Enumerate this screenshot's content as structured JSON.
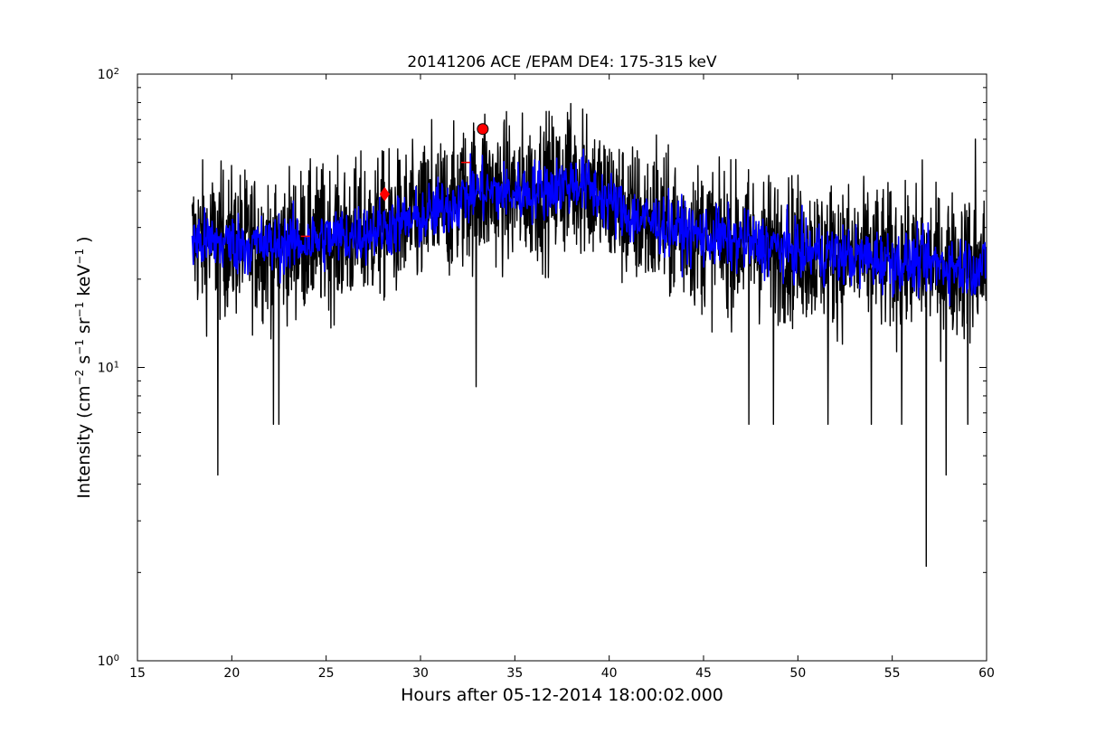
{
  "chart_data": {
    "type": "line",
    "title": "20141206 ACE /EPAM DE4: 175-315 keV",
    "xlabel": "Hours after 05-12-2014 18:00:02.000",
    "ylabel_parts": [
      "Intensity (cm",
      "−2",
      " s",
      "−1",
      " sr",
      "−1",
      " keV",
      "−1",
      " )"
    ],
    "xlim": [
      15,
      60
    ],
    "ylim": [
      1,
      100
    ],
    "yscale": "log",
    "x_ticks": [
      15,
      20,
      25,
      30,
      35,
      40,
      45,
      50,
      55,
      60
    ],
    "x_tick_labels": [
      "15",
      "20",
      "25",
      "30",
      "35",
      "40",
      "45",
      "50",
      "55",
      "60"
    ],
    "y_ticks": [
      1,
      10,
      100
    ],
    "y_tick_bases": [
      "10",
      "10",
      "10"
    ],
    "y_tick_exps": [
      "0",
      "1",
      "2"
    ],
    "grid": false,
    "series": [
      {
        "color": "#000000",
        "style": "raw",
        "x_start": 17.9,
        "x_end": 60,
        "trend": [
          [
            17.9,
            27
          ],
          [
            22,
            26
          ],
          [
            26,
            28
          ],
          [
            30,
            32
          ],
          [
            33,
            40
          ],
          [
            35,
            39
          ],
          [
            38.5,
            43
          ],
          [
            41,
            33
          ],
          [
            45,
            28
          ],
          [
            50,
            25
          ],
          [
            55,
            23
          ],
          [
            60,
            22
          ]
        ],
        "spikes_down": [
          [
            19.25,
            4.3
          ],
          [
            22.2,
            6.4
          ],
          [
            22.5,
            6.4
          ],
          [
            32.95,
            8.6
          ],
          [
            47.4,
            6.4
          ],
          [
            48.7,
            6.4
          ],
          [
            51.6,
            6.4
          ],
          [
            53.9,
            6.4
          ],
          [
            55.5,
            6.4
          ],
          [
            56.8,
            2.1
          ],
          [
            57.85,
            4.3
          ],
          [
            59,
            6.4
          ]
        ],
        "spikes_up": [
          [
            30.6,
            70
          ],
          [
            33.4,
            73
          ],
          [
            37.8,
            74
          ],
          [
            38.6,
            76
          ],
          [
            38.8,
            73
          ],
          [
            42.5,
            62
          ],
          [
            56.6,
            51
          ],
          [
            59.4,
            60
          ]
        ]
      },
      {
        "color": "#0000ff",
        "style": "smoothed",
        "x_start": 17.9,
        "x_end": 60,
        "trend": [
          [
            17.9,
            27
          ],
          [
            22,
            26
          ],
          [
            26,
            28
          ],
          [
            30,
            32
          ],
          [
            33,
            40
          ],
          [
            35,
            39
          ],
          [
            38.5,
            43
          ],
          [
            41,
            33
          ],
          [
            45,
            28
          ],
          [
            50,
            25
          ],
          [
            55,
            23
          ],
          [
            60,
            22
          ]
        ]
      }
    ],
    "markers": [
      {
        "shape": "circle",
        "x": 33.3,
        "y": 65,
        "color": "#ff0000"
      },
      {
        "shape": "diamond",
        "x": 28.1,
        "y": 39,
        "color": "#ff0000"
      },
      {
        "shape": "hline",
        "x": 23.9,
        "y": 28,
        "color": "#ff0000"
      },
      {
        "shape": "hline",
        "x": 32.4,
        "y": 50,
        "color": "#ff0000"
      }
    ]
  }
}
